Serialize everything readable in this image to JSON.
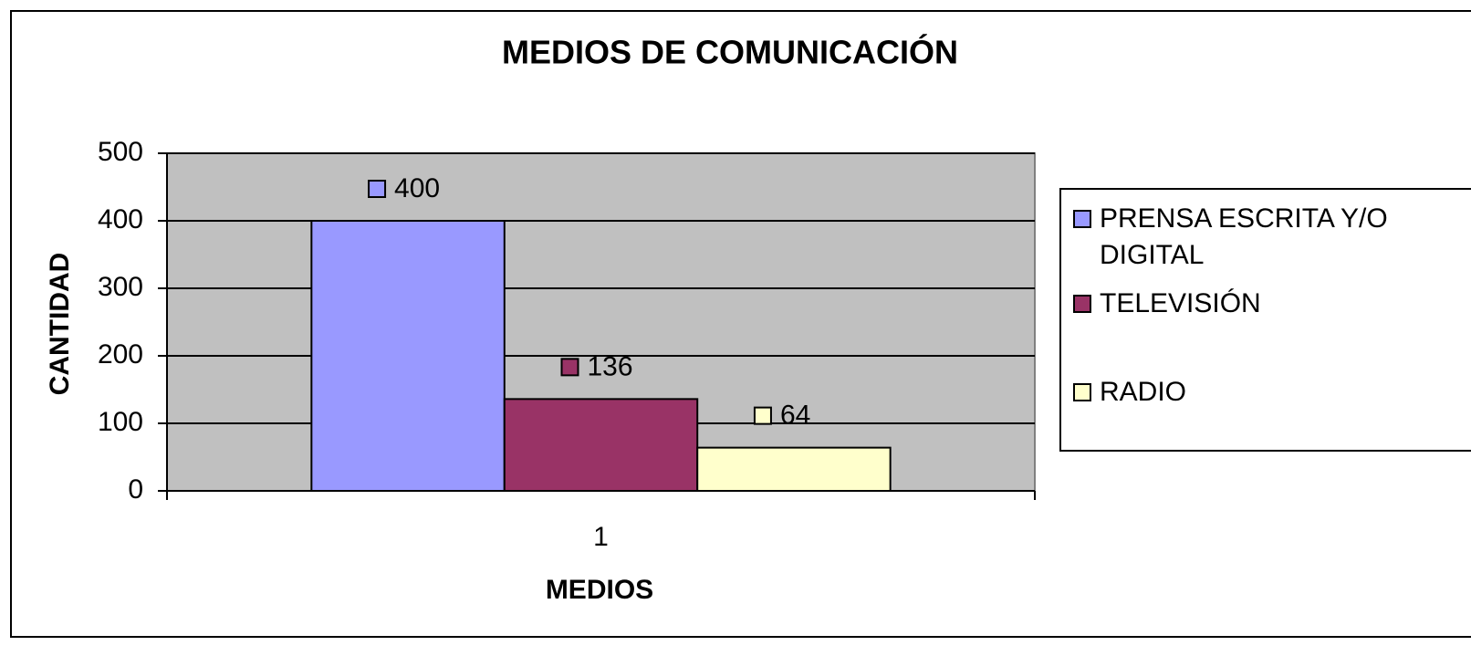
{
  "chart_data": {
    "type": "bar",
    "title": "MEDIOS DE COMUNICACIÓN",
    "x_label": "MEDIOS",
    "y_label": "CANTIDAD",
    "categories": [
      "1"
    ],
    "series": [
      {
        "name": "PRENSA ESCRITA Y/O DIGITAL",
        "color": "#9999ff",
        "values": [
          400
        ]
      },
      {
        "name": "TELEVISIÓN",
        "color": "#993366",
        "values": [
          136
        ]
      },
      {
        "name": "RADIO",
        "color": "#ffffcc",
        "values": [
          64
        ]
      }
    ],
    "ylim": [
      0,
      500
    ],
    "yticks": [
      0,
      100,
      200,
      300,
      400,
      500
    ],
    "grid": true,
    "legend": "right",
    "plot_background": "#c0c0c0"
  }
}
